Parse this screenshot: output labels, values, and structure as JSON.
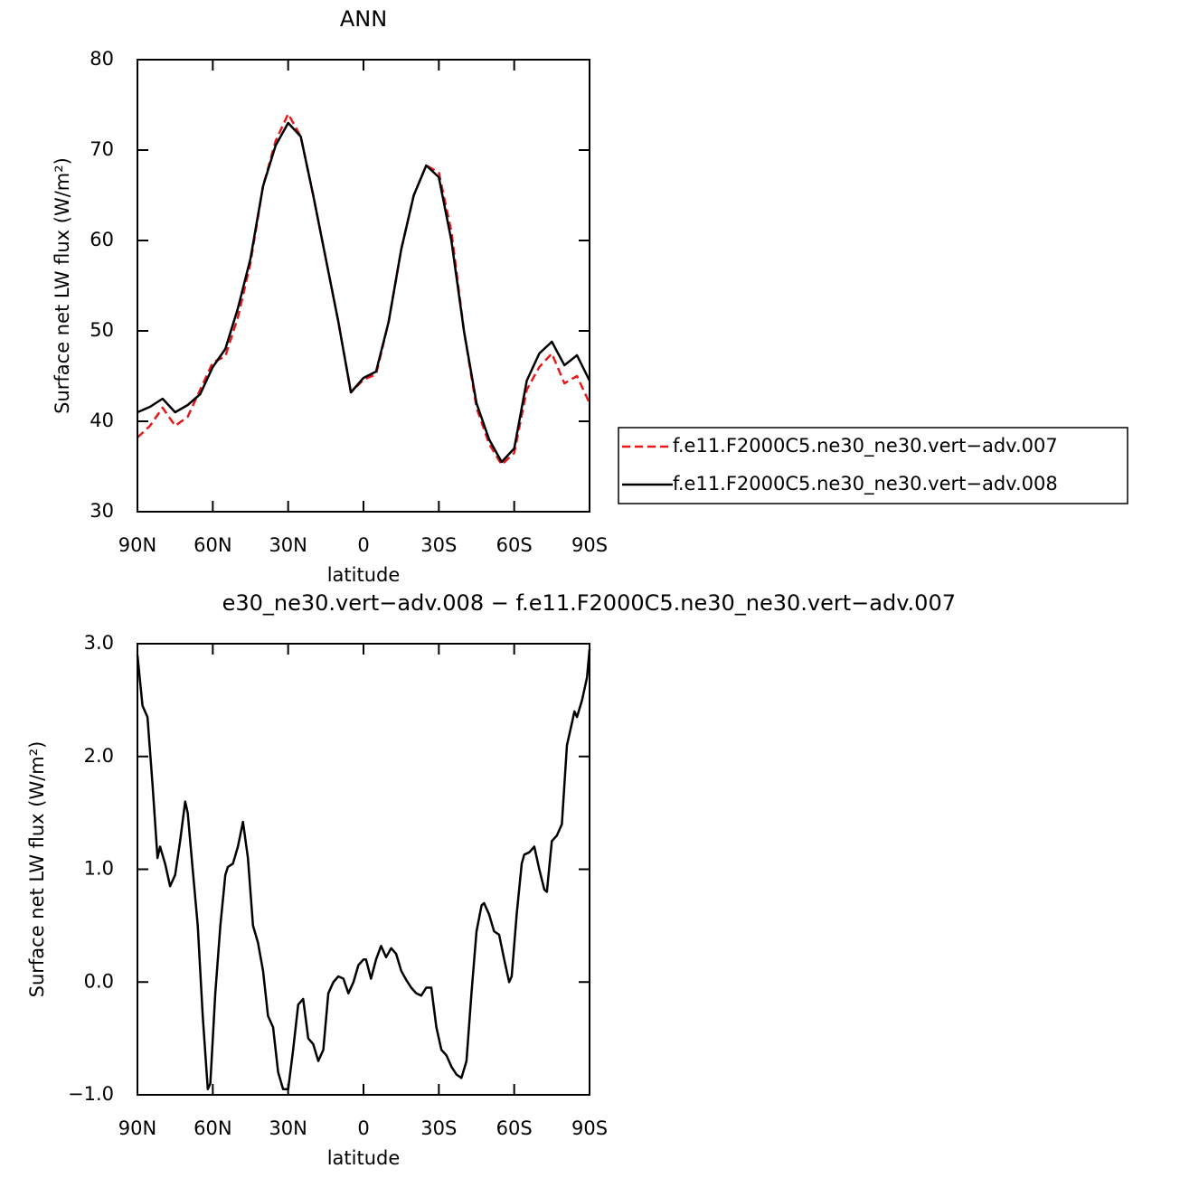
{
  "chart_data": [
    {
      "type": "line",
      "title": "ANN",
      "xlabel": "latitude",
      "ylabel": "Surface net LW flux (W/m²)",
      "x": [
        90,
        85,
        80,
        75,
        70,
        65,
        60,
        55,
        50,
        45,
        40,
        35,
        30,
        25,
        20,
        15,
        10,
        5,
        0,
        -5,
        -10,
        -15,
        -20,
        -25,
        -30,
        -35,
        -40,
        -45,
        -50,
        -55,
        -60,
        -65,
        -70,
        -75,
        -80,
        -85,
        -90
      ],
      "series": [
        {
          "name": "f.e11.F2000C5.ne30_ne30.vert−adv.007",
          "color": "#e41a1c",
          "style": "dashed",
          "values": [
            38.2,
            39.5,
            41.5,
            39.5,
            40.5,
            43.5,
            46.5,
            47.2,
            51.5,
            57.5,
            66.0,
            71.0,
            74.0,
            71.5,
            65,
            58,
            51,
            43.2,
            44.6,
            45.2,
            51,
            59,
            65,
            68.3,
            67.5,
            61,
            50,
            41.5,
            37.5,
            35.2,
            36.5,
            43.5,
            46,
            47.5,
            44.2,
            45,
            42
          ]
        },
        {
          "name": "f.e11.F2000C5.ne30_ne30.vert−adv.008",
          "color": "#000000",
          "style": "solid",
          "values": [
            41.0,
            41.6,
            42.5,
            41.0,
            41.8,
            43.0,
            46.0,
            48.0,
            52.5,
            58.0,
            66.0,
            70.5,
            73.0,
            71.5,
            65.0,
            58.0,
            51.0,
            43.2,
            44.8,
            45.5,
            51.0,
            59.0,
            65.0,
            68.3,
            67.0,
            60.0,
            50.0,
            42.0,
            38.0,
            35.5,
            37.0,
            44.5,
            47.5,
            48.8,
            46.2,
            47.3,
            44.5
          ]
        }
      ],
      "xlim": [
        90,
        -90
      ],
      "xticks": [
        {
          "value": 90,
          "label": "90N"
        },
        {
          "value": 60,
          "label": "60N"
        },
        {
          "value": 30,
          "label": "30N"
        },
        0,
        {
          "value": -30,
          "label": "30S"
        },
        {
          "value": -60,
          "label": "60S"
        },
        {
          "value": -90,
          "label": "90S"
        }
      ],
      "ylim": [
        30,
        80
      ],
      "yticks": [
        30,
        40,
        50,
        60,
        70,
        80
      ],
      "legend": "right"
    },
    {
      "type": "line",
      "title": "e30_ne30.vert−adv.008 − f.e11.F2000C5.ne30_ne30.vert−adv.007",
      "xlabel": "latitude",
      "ylabel": "Surface net LW flux (W/m²)",
      "x": [
        90,
        88,
        86,
        84,
        82,
        81,
        79,
        77,
        75,
        73,
        71,
        70,
        68,
        66,
        64,
        62,
        61,
        59,
        57,
        55,
        54,
        52,
        50,
        48,
        46,
        44,
        42,
        40,
        38,
        36,
        34,
        32,
        30,
        28,
        26,
        24,
        22,
        20,
        18,
        16,
        14,
        12,
        10,
        8,
        6,
        4,
        2,
        0,
        -1,
        -3,
        -5,
        -7,
        -9,
        -11,
        -13,
        -15,
        -17,
        -19,
        -21,
        -23,
        -25,
        -27,
        -29,
        -31,
        -33,
        -35,
        -37,
        -39,
        -41,
        -43,
        -45,
        -47,
        -48,
        -50,
        -52,
        -54,
        -56,
        -58,
        -59,
        -61,
        -63,
        -64,
        -66,
        -68,
        -70,
        -72,
        -73,
        -75,
        -77,
        -79,
        -81,
        -83,
        -84,
        -85,
        -87,
        -89,
        -90
      ],
      "series": [
        {
          "color": "#000000",
          "style": "solid",
          "values": [
            2.9,
            2.45,
            2.35,
            1.75,
            1.1,
            1.2,
            1.05,
            0.85,
            0.95,
            1.25,
            1.6,
            1.5,
            1.0,
            0.5,
            -0.3,
            -0.95,
            -0.9,
            -0.1,
            0.5,
            0.95,
            1.02,
            1.05,
            1.2,
            1.42,
            1.1,
            0.5,
            0.35,
            0.1,
            -0.3,
            -0.4,
            -0.8,
            -0.95,
            -0.95,
            -0.6,
            -0.2,
            -0.15,
            -0.5,
            -0.55,
            -0.7,
            -0.6,
            -0.1,
            0.0,
            0.05,
            0.03,
            -0.1,
            0.0,
            0.15,
            0.2,
            0.2,
            0.03,
            0.2,
            0.32,
            0.22,
            0.3,
            0.25,
            0.1,
            0.02,
            -0.05,
            -0.1,
            -0.12,
            -0.05,
            -0.05,
            -0.4,
            -0.6,
            -0.65,
            -0.75,
            -0.82,
            -0.85,
            -0.7,
            -0.1,
            0.45,
            0.68,
            0.7,
            0.6,
            0.45,
            0.42,
            0.2,
            0.0,
            0.05,
            0.6,
            1.05,
            1.13,
            1.15,
            1.2,
            1.0,
            0.82,
            0.8,
            1.25,
            1.3,
            1.4,
            2.1,
            2.3,
            2.4,
            2.35,
            2.5,
            2.7,
            2.95
          ]
        }
      ],
      "xlim": [
        90,
        -90
      ],
      "xticks": [
        {
          "value": 90,
          "label": "90N"
        },
        {
          "value": 60,
          "label": "60N"
        },
        {
          "value": 30,
          "label": "30N"
        },
        0,
        {
          "value": -30,
          "label": "30S"
        },
        {
          "value": -60,
          "label": "60S"
        },
        {
          "value": -90,
          "label": "90S"
        }
      ],
      "ylim": [
        -1,
        3
      ],
      "yticks": [
        {
          "value": -1,
          "label": "−1.0"
        },
        {
          "value": 0,
          "label": "0.0"
        },
        {
          "value": 1,
          "label": "1.0"
        },
        {
          "value": 2,
          "label": "2.0"
        },
        {
          "value": 3,
          "label": "3.0"
        }
      ]
    }
  ]
}
